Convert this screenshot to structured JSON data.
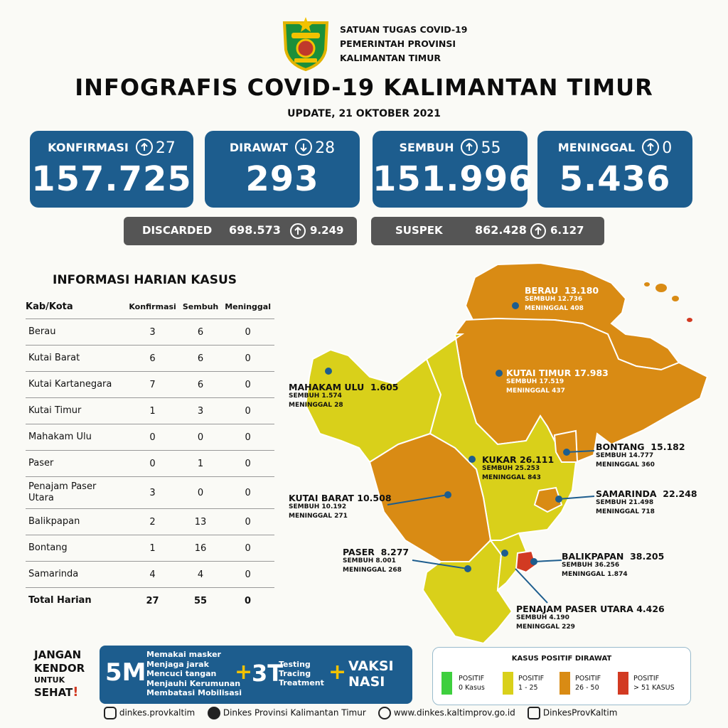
{
  "header": {
    "org_lines": [
      "SATUAN TUGAS COVID-19",
      "PEMERINTAH PROVINSI",
      "KALIMANTAN TIMUR"
    ],
    "title": "INFOGRAFIS COVID-19 KALIMANTAN TIMUR",
    "update": "UPDATE, 21 OKTOBER 2021"
  },
  "cards": [
    {
      "label": "KONFIRMASI",
      "dir": "up",
      "delta": "27",
      "value": "157.725"
    },
    {
      "label": "DIRAWAT",
      "dir": "down",
      "delta": "28",
      "value": "293"
    },
    {
      "label": "SEMBUH",
      "dir": "up",
      "delta": "55",
      "value": "151.996"
    },
    {
      "label": "MENINGGAL",
      "dir": "up",
      "delta": "0",
      "value": "5.436"
    }
  ],
  "pills": [
    {
      "label": "DISCARDED",
      "value": "698.573",
      "dir": "up",
      "delta": "9.249"
    },
    {
      "label": "SUSPEK",
      "value": "862.428",
      "dir": "up",
      "delta": "6.127"
    }
  ],
  "table": {
    "title": "INFORMASI HARIAN KASUS",
    "headers": [
      "Kab/Kota",
      "Konfirmasi",
      "Sembuh",
      "Meninggal"
    ],
    "rows": [
      [
        "Berau",
        "3",
        "6",
        "0"
      ],
      [
        "Kutai Barat",
        "6",
        "6",
        "0"
      ],
      [
        "Kutai Kartanegara",
        "7",
        "6",
        "0"
      ],
      [
        "Kutai Timur",
        "1",
        "3",
        "0"
      ],
      [
        "Mahakam Ulu",
        "0",
        "0",
        "0"
      ],
      [
        "Paser",
        "0",
        "1",
        "0"
      ],
      [
        "Penajam Paser Utara",
        "3",
        "0",
        "0"
      ],
      [
        "Balikpapan",
        "2",
        "13",
        "0"
      ],
      [
        "Bontang",
        "1",
        "16",
        "0"
      ],
      [
        "Samarinda",
        "4",
        "4",
        "0"
      ]
    ],
    "total": [
      "Total Harian",
      "27",
      "55",
      "0"
    ]
  },
  "map": {
    "regions": [
      {
        "name": "BERAU",
        "total": "13.180",
        "sembuh": "SEMBUH 12.736",
        "meninggal": "MENINGGAL 408",
        "color": "#d98b14"
      },
      {
        "name": "KUTAI TIMUR",
        "total": "17.983",
        "sembuh": "SEMBUH 17.519",
        "meninggal": "MENINGGAL 437",
        "color": "#d98b14"
      },
      {
        "name": "MAHAKAM ULU",
        "total": "1.605",
        "sembuh": "SEMBUH 1.574",
        "meninggal": "MENINGGAL 28",
        "color": "#d9d01a"
      },
      {
        "name": "KUKAR",
        "total": "26.111",
        "sembuh": "SEMBUH 25.253",
        "meninggal": "MENINGGAL 843",
        "color": "#d9d01a"
      },
      {
        "name": "KUTAI BARAT",
        "total": "10.508",
        "sembuh": "SEMBUH 10.192",
        "meninggal": "MENINGGAL 271",
        "color": "#d98b14"
      },
      {
        "name": "BONTANG",
        "total": "15.182",
        "sembuh": "SEMBUH 14.777",
        "meninggal": "MENINGGAL 360",
        "color": "#d98b14"
      },
      {
        "name": "SAMARINDA",
        "total": "22.248",
        "sembuh": "SEMBUH 21.498",
        "meninggal": "MENINGGAL 718",
        "color": "#d98b14"
      },
      {
        "name": "PASER",
        "total": "8.277",
        "sembuh": "SEMBUH 8.001",
        "meninggal": "MENINGGAL 268",
        "color": "#d9d01a"
      },
      {
        "name": "BALIKPAPAN",
        "total": "38.205",
        "sembuh": "SEMBUH 36.256",
        "meninggal": "MENINGGAL 1.874",
        "color": "#d23a22"
      },
      {
        "name": "PENAJAM PASER UTARA",
        "total": "4.426",
        "sembuh": "SEMBUH 4.190",
        "meninggal": "MENINGGAL 229",
        "color": "#d9d01a"
      }
    ]
  },
  "campaign": {
    "jangan_lines": [
      "JANGAN",
      "KENDOR",
      "UNTUK",
      "SEHAT"
    ],
    "m5": "5M",
    "m5_items": [
      "Memakai masker",
      "Menjaga jarak",
      "Mencuci tangan",
      "Menjauhi Kerumunan",
      "Membatasi Mobilisasi"
    ],
    "plus": "+",
    "t3": "3T",
    "t3_items": [
      "Testing",
      "Tracing",
      "Treatment"
    ],
    "vaksi_lines": [
      "VAKSI",
      "NASI"
    ]
  },
  "legend": {
    "title": "KASUS POSITIF DIRAWAT",
    "items": [
      {
        "l1": "POSITIF",
        "l2": "0 Kasus",
        "color": "#3ecf3e"
      },
      {
        "l1": "POSITIF",
        "l2": "1 - 25",
        "color": "#d9d01a"
      },
      {
        "l1": "POSITIF",
        "l2": "26 - 50",
        "color": "#d98b14"
      },
      {
        "l1": "POSITIF",
        "l2": "> 51 KASUS",
        "color": "#d23a22"
      }
    ]
  },
  "footer": {
    "instagram": "dinkes.provkaltim",
    "facebook": "Dinkes Provinsi Kalimantan Timur",
    "web": "www.dinkes.kaltimprov.go.id",
    "youtube": "DinkesProvKaltim"
  }
}
